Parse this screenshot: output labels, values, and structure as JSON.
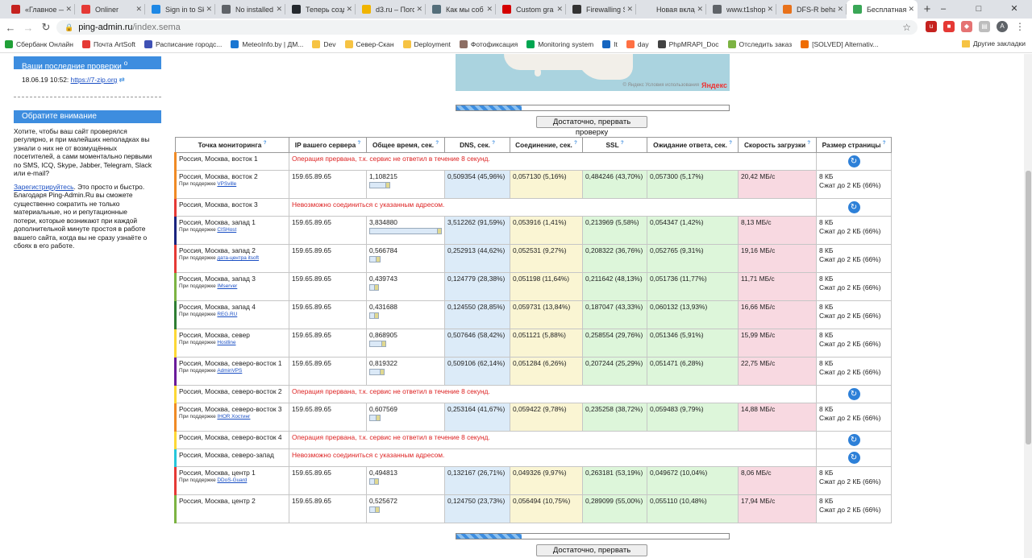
{
  "browser": {
    "tabs": [
      {
        "label": "«Главное —",
        "icon": "shield-icon",
        "color": "#c5221f"
      },
      {
        "label": "Onliner",
        "icon": "onliner-icon",
        "color": "#e53935"
      },
      {
        "label": "Sign in to Sk",
        "icon": "windows-icon",
        "color": "#1e88e5"
      },
      {
        "label": "No installed",
        "icon": "puzzle-icon",
        "color": "#5f6368"
      },
      {
        "label": "Теперь созд",
        "icon": "github-icon",
        "color": "#24292e"
      },
      {
        "label": "d3.ru – Пого",
        "icon": "d3-icon",
        "color": "#f0b400"
      },
      {
        "label": "Как мы соб",
        "icon": "habr-icon",
        "color": "#546e7a"
      },
      {
        "label": "Custom gra",
        "icon": "zabbix-icon",
        "color": "#d40000"
      },
      {
        "label": "Firewalling S",
        "icon": "firewall-icon",
        "color": "#333333"
      },
      {
        "label": "Новая вкладка",
        "icon": "blank-icon",
        "color": "#dee1e6"
      },
      {
        "label": "www.t1shop",
        "icon": "globe-icon",
        "color": "#5f6368"
      },
      {
        "label": "DFS-R behav",
        "icon": "dfs-icon",
        "color": "#e8711a"
      },
      {
        "label": "Бесплатная",
        "icon": "ping-admin-icon",
        "color": "#3aa757",
        "active": true
      }
    ],
    "window_controls": [
      "–",
      "□",
      "✕"
    ],
    "url_host": "ping-admin.ru",
    "url_path": "/index.sema",
    "bookmarks": [
      {
        "label": "Сбербанк Онлайн",
        "color": "#21a038"
      },
      {
        "label": "Почта ArtSoft",
        "color": "#e53935"
      },
      {
        "label": "Расписание городс...",
        "color": "#3f51b5"
      },
      {
        "label": "MeteoInfo.by | ДМ...",
        "color": "#1976d2"
      },
      {
        "label": "Dev",
        "color": "#f6c343"
      },
      {
        "label": "Север-Скан",
        "color": "#f6c343"
      },
      {
        "label": "Deployment",
        "color": "#f6c343"
      },
      {
        "label": "Фотофиксация",
        "color": "#8d6e63"
      },
      {
        "label": "Monitoring system",
        "color": "#00a651"
      },
      {
        "label": "It",
        "color": "#1565c0"
      },
      {
        "label": "day",
        "color": "#ff7043"
      },
      {
        "label": "PhpMRAPI_Doc",
        "color": "#424242"
      },
      {
        "label": "Отследить заказ",
        "color": "#7cb342"
      },
      {
        "label": "[SOLVED] Alternativ...",
        "color": "#ef6c00"
      }
    ],
    "other_bookmarks": "Другие закладки"
  },
  "sidebar": {
    "recent_title": "Ваши последние проверки",
    "recent_date": "18.06.19 10:52:",
    "recent_link": "https://7-zip.org",
    "attention_title": "Обратите внимание",
    "attention_text": "Хотите, чтобы ваш сайт проверялся регулярно, и при малейших неполадках вы узнали о них не от возмущённых посетителей, а сами моментально первыми по SMS, ICQ, Skype, Jabber, Telegram, Slack или e-mail?",
    "register_link": "Зарегистрируйтесь",
    "register_text": ". Это просто и быстро. Благодаря Ping-Admin.Ru вы сможете существенно сократить не только материальные, но и репутационные потери, которые возникают при каждой дополнительной минуте простоя в работе вашего сайта, когда вы не сразу узнаёте о сбоях в его работе."
  },
  "map": {
    "copyright": "© Яндекс Условия использования",
    "logo": "Яндекс"
  },
  "progress": {
    "fraction": 0.24
  },
  "stop_button": "Достаточно, прервать проверку",
  "table": {
    "headers": [
      "Точка мониторинга",
      "IP вашего сервера",
      "Общее время, сек.",
      "DNS, сек.",
      "Соединение, сек.",
      "SSL",
      "Ожидание ответа, сек.",
      "Скорость загрузки",
      "Размер страницы"
    ],
    "hosted_prefix": "При поддержке",
    "rows": [
      {
        "loc": "Россия, Москва, восток 1",
        "color": "#f08a24",
        "error": "Операция прервана, т.к. сервис не ответил в течение 8 секунд."
      },
      {
        "loc": "Россия, Москва, восток 2",
        "host": "VPSville",
        "color": "#f08a24",
        "ip": "159.65.89.65",
        "total": "1,108215",
        "bar": 0.29,
        "dns": "0,509354 (45,96%)",
        "conn": "0,057130 (5,16%)",
        "ssl": "0,484246 (43,70%)",
        "wait": "0,057300 (5,17%)",
        "speed": "20,42 МБ/с",
        "size": "8 КБ",
        "gzip": "Сжат до 2 КБ (66%)"
      },
      {
        "loc": "Россия, Москва, восток 3",
        "color": "#e53935",
        "error": "Невозможно соединиться с указанным адресом."
      },
      {
        "loc": "Россия, Москва, запад 1",
        "host": "CISHost",
        "color": "#1a237e",
        "ip": "159.65.89.65",
        "total": "3,834880",
        "bar": 1.0,
        "dns": "3,512262 (91,59%)",
        "conn": "0,053916 (1,41%)",
        "ssl": "0,213969 (5,58%)",
        "wait": "0,054347 (1,42%)",
        "speed": "8,13 МБ/с",
        "size": "8 КБ",
        "gzip": "Сжат до 2 КБ (66%)"
      },
      {
        "loc": "Россия, Москва, запад 2",
        "host": "дата-центра itsoft",
        "color": "#e53935",
        "ip": "159.65.89.65",
        "total": "0,566784",
        "bar": 0.15,
        "dns": "0,252913 (44,62%)",
        "conn": "0,052531 (9,27%)",
        "ssl": "0,208322 (36,76%)",
        "wait": "0,052765 (9,31%)",
        "speed": "19,16 МБ/с",
        "size": "8 КБ",
        "gzip": "Сжат до 2 КБ (66%)"
      },
      {
        "loc": "Россия, Москва, запад 3",
        "host": "IMserver",
        "color": "#7cb342",
        "ip": "159.65.89.65",
        "total": "0,439743",
        "bar": 0.11,
        "dns": "0,124779 (28,38%)",
        "conn": "0,051198 (11,64%)",
        "ssl": "0,211642 (48,13%)",
        "wait": "0,051736 (11,77%)",
        "speed": "11,71 МБ/с",
        "size": "8 КБ",
        "gzip": "Сжат до 2 КБ (66%)"
      },
      {
        "loc": "Россия, Москва, запад 4",
        "host": "REG.RU",
        "color": "#2e7d32",
        "ip": "159.65.89.65",
        "total": "0,431688",
        "bar": 0.11,
        "dns": "0,124550 (28,85%)",
        "conn": "0,059731 (13,84%)",
        "ssl": "0,187047 (43,33%)",
        "wait": "0,060132 (13,93%)",
        "speed": "16,66 МБ/с",
        "size": "8 КБ",
        "gzip": "Сжат до 2 КБ (66%)"
      },
      {
        "loc": "Россия, Москва, север",
        "host": "Hostline",
        "color": "#fdd835",
        "ip": "159.65.89.65",
        "total": "0,868905",
        "bar": 0.23,
        "dns": "0,507646 (58,42%)",
        "conn": "0,051121 (5,88%)",
        "ssl": "0,258554 (29,76%)",
        "wait": "0,051346 (5,91%)",
        "speed": "15,99 МБ/с",
        "size": "8 КБ",
        "gzip": "Сжат до 2 КБ (66%)"
      },
      {
        "loc": "Россия, Москва, северо-восток 1",
        "host": "AdminVPS",
        "color": "#6a1b9a",
        "ip": "159.65.89.65",
        "total": "0,819322",
        "bar": 0.21,
        "dns": "0,509106 (62,14%)",
        "conn": "0,051284 (6,26%)",
        "ssl": "0,207244 (25,29%)",
        "wait": "0,051471 (6,28%)",
        "speed": "22,75 МБ/с",
        "size": "8 КБ",
        "gzip": "Сжат до 2 КБ (66%)"
      },
      {
        "loc": "Россия, Москва, северо-восток 2",
        "color": "#fdd835",
        "error": "Операция прервана, т.к. сервис не ответил в течение 8 секунд."
      },
      {
        "loc": "Россия, Москва, северо-восток 3",
        "host": "IHOR Хостинг",
        "color": "#f08a24",
        "ip": "159.65.89.65",
        "total": "0,607569",
        "bar": 0.16,
        "dns": "0,253164 (41,67%)",
        "conn": "0,059422 (9,78%)",
        "ssl": "0,235258 (38,72%)",
        "wait": "0,059483 (9,79%)",
        "speed": "14,88 МБ/с",
        "size": "8 КБ",
        "gzip": "Сжат до 2 КБ (66%)"
      },
      {
        "loc": "Россия, Москва, северо-восток 4",
        "color": "#fdd835",
        "error": "Операция прервана, т.к. сервис не ответил в течение 8 секунд."
      },
      {
        "loc": "Россия, Москва, северо-запад",
        "color": "#26c6da",
        "error": "Невозможно соединиться с указанным адресом."
      },
      {
        "loc": "Россия, Москва, центр 1",
        "host": "DDoS-Guard",
        "color": "#e53935",
        "ip": "159.65.89.65",
        "total": "0,494813",
        "bar": 0.13,
        "dns": "0,132167 (26,71%)",
        "conn": "0,049326 (9,97%)",
        "ssl": "0,263181 (53,19%)",
        "wait": "0,049672 (10,04%)",
        "speed": "8,06 МБ/с",
        "size": "8 КБ",
        "gzip": "Сжат до 2 КБ (66%)"
      },
      {
        "loc": "Россия, Москва, центр 2",
        "color": "#7cb342",
        "ip": "159.65.89.65",
        "total": "0,525672",
        "bar": 0.14,
        "dns": "0,124750 (23,73%)",
        "conn": "0,056494 (10,75%)",
        "ssl": "0,289099 (55,00%)",
        "wait": "0,055110 (10,48%)",
        "speed": "17,94 МБ/с",
        "size": "8 КБ",
        "gzip": "Сжат до 2 КБ (66%)"
      }
    ]
  }
}
